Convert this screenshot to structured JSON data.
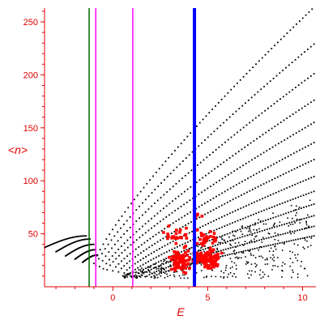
{
  "chart_data": {
    "type": "scatter",
    "xlabel": "E",
    "ylabel": "<n>",
    "xlim": [
      -3.6,
      10.7
    ],
    "ylim": [
      0,
      263
    ],
    "x_ticks": [
      0,
      5,
      10
    ],
    "y_ticks": [
      50,
      100,
      150,
      200,
      250
    ],
    "grid": false,
    "colors": {
      "axis": "#e00000",
      "tick_label": "#e00000",
      "black_points": "#000000",
      "red_points": "#ff0000",
      "green_line": "#006400",
      "magenta_line": "#ff00ff",
      "blue_line": "#0000ff"
    },
    "vertical_lines": [
      {
        "x": -1.25,
        "color": "#006400",
        "width": 1.5
      },
      {
        "x": -0.9,
        "color": "#ff00ff",
        "width": 1.5
      },
      {
        "x": 1.05,
        "color": "#ff00ff",
        "width": 1.5
      },
      {
        "x": 4.3,
        "color": "#0000ff",
        "width": 4
      }
    ],
    "series": [
      {
        "color": "#000000",
        "kind": "dotted-curves",
        "branches": [
          {
            "x0": -1.0,
            "y0": 22,
            "x1": 10.5,
            "y1": 262
          },
          {
            "x0": -0.9,
            "y0": 20,
            "x1": 10.6,
            "y1": 229
          },
          {
            "x0": -0.7,
            "y0": 19,
            "x1": 10.6,
            "y1": 201
          },
          {
            "x0": -0.5,
            "y0": 17,
            "x1": 10.6,
            "y1": 176
          },
          {
            "x0": -0.3,
            "y0": 16,
            "x1": 10.6,
            "y1": 155
          },
          {
            "x0": 0.0,
            "y0": 15,
            "x1": 10.6,
            "y1": 136
          },
          {
            "x0": 0.3,
            "y0": 14,
            "x1": 10.6,
            "y1": 120
          },
          {
            "x0": 0.6,
            "y0": 13,
            "x1": 10.6,
            "y1": 104
          },
          {
            "x0": 0.9,
            "y0": 12,
            "x1": 10.6,
            "y1": 90
          },
          {
            "x0": 1.2,
            "y0": 11,
            "x1": 10.6,
            "y1": 78
          },
          {
            "x0": 1.5,
            "y0": 11,
            "x1": 10.6,
            "y1": 67
          },
          {
            "x0": 1.8,
            "y0": 10,
            "x1": 10.6,
            "y1": 57
          },
          {
            "x0": 2.2,
            "y0": 10,
            "x1": 10.6,
            "y1": 48
          }
        ],
        "left_fan": [
          {
            "x0": -3.6,
            "y0": 37,
            "x1": -1.4,
            "y1": 48
          },
          {
            "x0": -3.0,
            "y0": 33,
            "x1": -1.2,
            "y1": 45
          },
          {
            "x0": -2.5,
            "y0": 29,
            "x1": -1.0,
            "y1": 40
          },
          {
            "x0": -2.0,
            "y0": 26,
            "x1": -0.9,
            "y1": 35
          },
          {
            "x0": -1.6,
            "y0": 23,
            "x1": -0.8,
            "y1": 30
          }
        ],
        "scatter_region": {
          "x": [
            0.5,
            10.5
          ],
          "y": [
            8,
            95
          ],
          "count": 420
        }
      },
      {
        "color": "#ff0000",
        "kind": "scatter",
        "clusters": [
          {
            "x": 3.5,
            "y": 25,
            "sx": 0.35,
            "sy": 7,
            "n": 90
          },
          {
            "x": 5.0,
            "y": 26,
            "sx": 0.45,
            "sy": 6,
            "n": 110
          },
          {
            "x": 3.4,
            "y": 47,
            "sx": 0.45,
            "sy": 6,
            "n": 25
          },
          {
            "x": 4.9,
            "y": 45,
            "sx": 0.45,
            "sy": 7,
            "n": 30
          },
          {
            "x": 4.5,
            "y": 65,
            "sx": 0.2,
            "sy": 4,
            "n": 5
          }
        ]
      }
    ]
  }
}
